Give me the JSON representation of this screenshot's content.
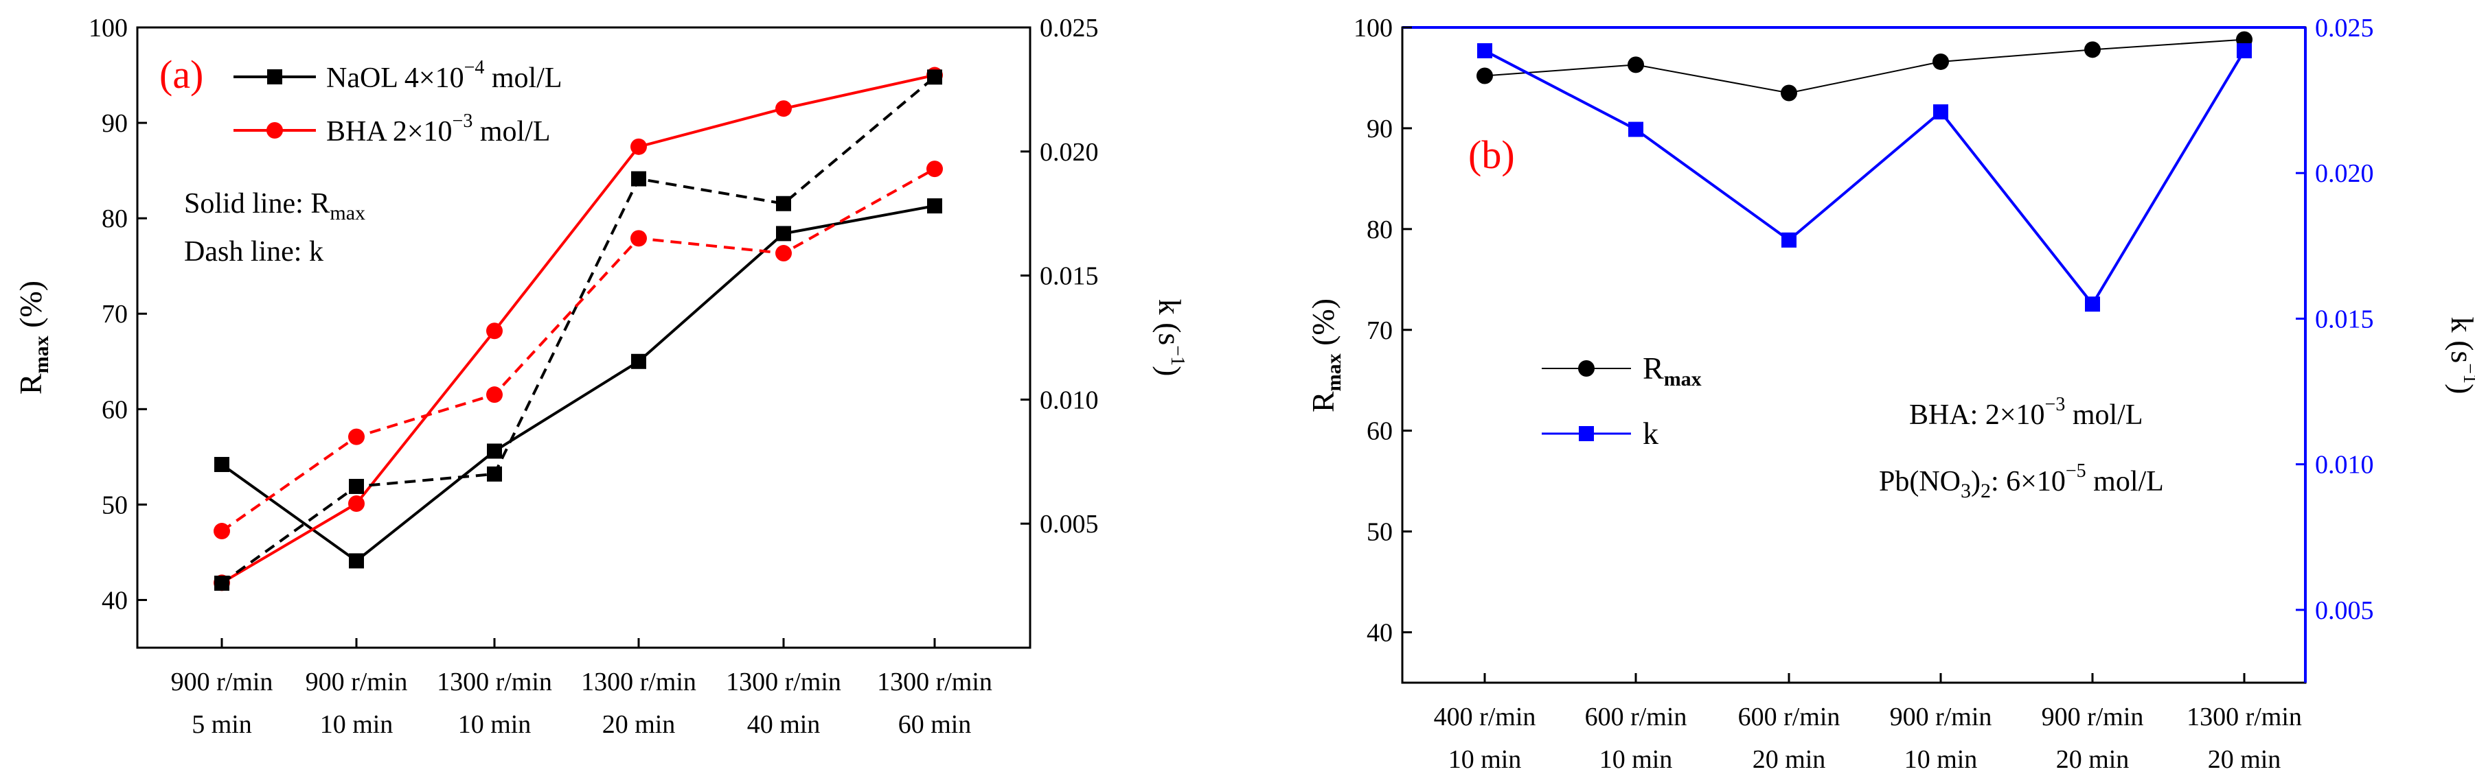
{
  "colors": {
    "black": "#000000",
    "red": "#ff0000",
    "blue": "#0000ff"
  },
  "chart_data": [
    {
      "type": "line",
      "panel_label": "(a)",
      "categories": [
        [
          "900 r/min",
          "5 min"
        ],
        [
          "900 r/min",
          "10 min"
        ],
        [
          "1300 r/min",
          "10 min"
        ],
        [
          "1300 r/min",
          "20 min"
        ],
        [
          "1300 r/min",
          "40 min"
        ],
        [
          "1300 r/min",
          "60 min"
        ]
      ],
      "ylabel": {
        "main": "R",
        "sub": "max",
        "unit": " (%)"
      },
      "y2label": {
        "main": "k (s",
        "sup": "−1",
        "end": ")"
      },
      "ylim": [
        35,
        100
      ],
      "y2lim": [
        0.0,
        0.025
      ],
      "yticks": [
        "40",
        "50",
        "60",
        "70",
        "80",
        "90",
        "100"
      ],
      "y2ticks": [
        "0.005",
        "0.010",
        "0.015",
        "0.020",
        "0.025"
      ],
      "legend": [
        {
          "pre": "NaOL 4×10",
          "sup": "−4",
          "post": " mol/L",
          "color": "#000000",
          "marker": "square"
        },
        {
          "pre": "BHA 2×10",
          "sup": "−3",
          "post": " mol/L",
          "color": "#ff0000",
          "marker": "circle"
        }
      ],
      "annotations": [
        {
          "pre": "Solid line: R",
          "sub": "max",
          "post": ""
        },
        {
          "pre": "Dash line: k",
          "sub": "",
          "post": ""
        }
      ],
      "series": [
        {
          "name": "NaOL Rmax",
          "axis": "left",
          "style": "solid",
          "color": "#000000",
          "marker": "square",
          "values": [
            54.2,
            44.1,
            55.6,
            65.0,
            78.4,
            81.3
          ]
        },
        {
          "name": "BHA Rmax",
          "axis": "left",
          "style": "solid",
          "color": "#ff0000",
          "marker": "circle",
          "values": [
            41.8,
            50.1,
            68.2,
            87.5,
            91.5,
            95.0
          ]
        },
        {
          "name": "NaOL k",
          "axis": "right",
          "style": "dash",
          "color": "#000000",
          "marker": "square",
          "values": [
            0.0026,
            0.0065,
            0.007,
            0.0189,
            0.0179,
            0.023
          ]
        },
        {
          "name": "BHA k",
          "axis": "right",
          "style": "dash",
          "color": "#ff0000",
          "marker": "circle",
          "values": [
            0.0047,
            0.0085,
            0.0102,
            0.0165,
            0.0159,
            0.0193
          ]
        }
      ]
    },
    {
      "type": "line",
      "panel_label": "(b)",
      "categories": [
        [
          "400 r/min",
          "10 min"
        ],
        [
          "600 r/min",
          "10 min"
        ],
        [
          "600 r/min",
          "20 min"
        ],
        [
          "900 r/min",
          "10 min"
        ],
        [
          "900 r/min",
          "20 min"
        ],
        [
          "1300 r/min",
          "20 min"
        ]
      ],
      "ylabel": {
        "main": "R",
        "sub": "max",
        "unit": " (%)"
      },
      "y2label": {
        "main": "k (s",
        "sup": "−1",
        "end": ")"
      },
      "ylim": [
        35,
        100
      ],
      "y2lim": [
        0.0025,
        0.025
      ],
      "yticks": [
        "40",
        "50",
        "60",
        "70",
        "80",
        "90",
        "100"
      ],
      "y2ticks": [
        "0.005",
        "0.010",
        "0.015",
        "0.020",
        "0.025"
      ],
      "legend": [
        {
          "pre": "R",
          "sub": "max",
          "post": "",
          "color": "#000000",
          "marker": "circle"
        },
        {
          "pre": "k",
          "sub": "",
          "post": "",
          "color": "#0000ff",
          "marker": "square"
        }
      ],
      "annotations": [
        {
          "pre": "BHA: 2×10",
          "sup": "−3",
          "post": " mol/L"
        },
        {
          "pre": "Pb(NO",
          "sub": "3",
          "mid": ")",
          "sub2": "2",
          "post1": ": 6×10",
          "sup": "−5",
          "post": " mol/L"
        }
      ],
      "series": [
        {
          "name": "Rmax",
          "axis": "left",
          "style": "solid",
          "color": "#000000",
          "marker": "circle",
          "values": [
            95.2,
            96.3,
            93.5,
            96.6,
            97.8,
            98.8
          ]
        },
        {
          "name": "k",
          "axis": "right",
          "style": "solid",
          "color": "#0000ff",
          "marker": "square",
          "values": [
            0.0242,
            0.0215,
            0.0177,
            0.0221,
            0.0155,
            0.0242
          ]
        }
      ]
    }
  ]
}
